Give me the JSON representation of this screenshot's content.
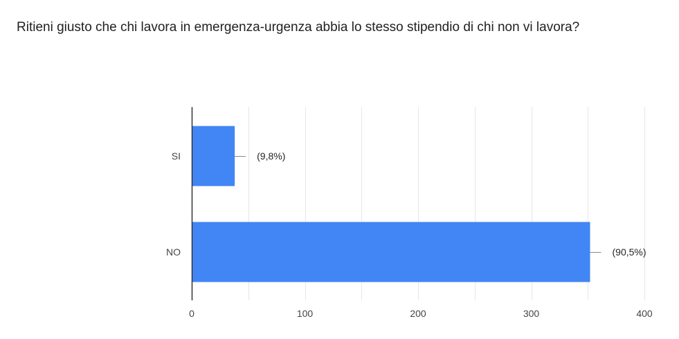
{
  "question": {
    "title": "Ritieni giusto che chi lavora in emergenza-urgenza abbia lo stesso stipendio di chi non vi lavora?"
  },
  "colors": {
    "bar": "#4285f4",
    "grid": "#e6e6e6",
    "axis": "#333333"
  },
  "chart_data": {
    "type": "bar",
    "orientation": "horizontal",
    "categories": [
      "SI",
      "NO"
    ],
    "values": [
      38,
      352
    ],
    "data_labels": [
      "(9,8%)",
      "(90,5%)"
    ],
    "xlim": [
      0,
      400
    ],
    "xticks": [
      0,
      100,
      200,
      300,
      400
    ],
    "grid": true,
    "legend": "none"
  }
}
